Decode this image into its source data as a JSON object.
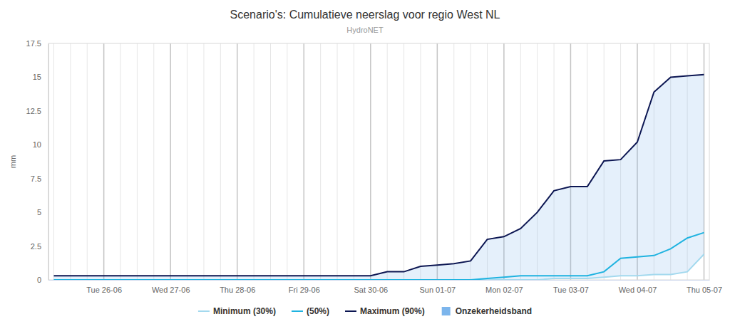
{
  "chart_data": {
    "type": "line",
    "title": "Scenario's: Cumulatieve neerslag voor regio West NL",
    "subtitle": "HydroNET",
    "y_label": "mm",
    "categories": [
      null,
      null,
      null,
      "Tue 26-06",
      null,
      null,
      null,
      "Wed 27-06",
      null,
      null,
      null,
      "Thu 28-06",
      null,
      null,
      null,
      "Fri 29-06",
      null,
      null,
      null,
      "Sat 30-06",
      null,
      null,
      null,
      "Sun 01-07",
      null,
      null,
      null,
      "Mon 02-07",
      null,
      null,
      null,
      "Tue 03-07",
      null,
      null,
      null,
      "Wed 04-07",
      null,
      null,
      null,
      "Thu 05-07"
    ],
    "series": [
      {
        "name": "Minimum (30%)",
        "color": "#a3d9ee",
        "values": [
          0,
          0,
          0,
          0,
          0,
          0,
          0,
          0,
          0,
          0,
          0,
          0,
          0,
          0,
          0,
          0,
          0,
          0,
          0,
          0,
          0,
          0,
          0,
          0,
          0,
          0,
          0,
          0,
          0,
          0,
          0.1,
          0.1,
          0.1,
          0.2,
          0.3,
          0.3,
          0.4,
          0.4,
          0.6,
          1.9
        ]
      },
      {
        "name": "(50%)",
        "color": "#1fb3e0",
        "values": [
          0,
          0,
          0,
          0,
          0,
          0,
          0,
          0,
          0,
          0,
          0,
          0,
          0,
          0,
          0,
          0,
          0,
          0,
          0,
          0,
          0,
          0,
          0,
          0,
          0,
          0,
          0.1,
          0.2,
          0.3,
          0.3,
          0.3,
          0.3,
          0.3,
          0.6,
          1.6,
          1.7,
          1.8,
          2.3,
          3.1,
          3.5
        ]
      },
      {
        "name": "Maximum (90%)",
        "color": "#0c1652",
        "values": [
          0.3,
          0.3,
          0.3,
          0.3,
          0.3,
          0.3,
          0.3,
          0.3,
          0.3,
          0.3,
          0.3,
          0.3,
          0.3,
          0.3,
          0.3,
          0.3,
          0.3,
          0.3,
          0.3,
          0.3,
          0.6,
          0.6,
          1.0,
          1.1,
          1.2,
          1.4,
          3.0,
          3.2,
          3.8,
          5.0,
          6.6,
          6.9,
          6.9,
          8.8,
          8.9,
          10.2,
          13.9,
          15.0,
          15.1,
          15.2
        ]
      }
    ],
    "band": {
      "name": "Onzekerheidsband",
      "color": "#7cb5ec"
    },
    "ylim": [
      0,
      17.5
    ],
    "yticks": [
      0,
      2.5,
      5,
      7.5,
      10,
      12.5,
      15,
      17.5
    ],
    "grid": true,
    "legend": "bottom"
  }
}
